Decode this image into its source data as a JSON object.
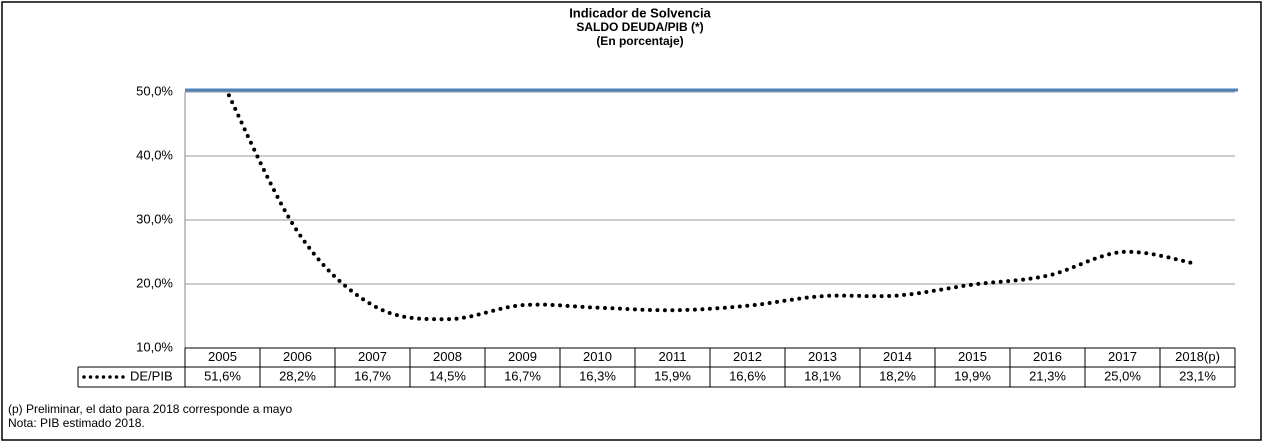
{
  "chart_data": {
    "type": "line",
    "title": "Indicador de Solvencia",
    "subtitle": [
      "SALDO DEUDA/PIB (*)",
      "(En porcentaje)"
    ],
    "categories": [
      "2005",
      "2006",
      "2007",
      "2008",
      "2009",
      "2010",
      "2011",
      "2012",
      "2013",
      "2014",
      "2015",
      "2016",
      "2017",
      "2018(p)"
    ],
    "series": [
      {
        "name": "DE/PIB",
        "color": "#000000",
        "values": [
          51.6,
          28.2,
          16.7,
          14.5,
          16.7,
          16.3,
          15.9,
          16.6,
          18.1,
          18.2,
          19.9,
          21.3,
          25.0,
          23.1
        ],
        "value_labels": [
          "51,6%",
          "28,2%",
          "16,7%",
          "14,5%",
          "16,7%",
          "16,3%",
          "15,9%",
          "16,6%",
          "18,1%",
          "18,2%",
          "19,9%",
          "21,3%",
          "25,0%",
          "23,1%"
        ]
      }
    ],
    "ylim": [
      10,
      50
    ],
    "yticks": [
      {
        "value": 10,
        "label": "10,0%"
      },
      {
        "value": 20,
        "label": "20,0%"
      },
      {
        "value": 30,
        "label": "30,0%"
      },
      {
        "value": 40,
        "label": "40,0%"
      },
      {
        "value": 50,
        "label": "50,0%"
      }
    ],
    "grid": true,
    "notes": [
      "(p)  Preliminar, el dato para 2018 corresponde a mayo",
      "Nota: PIB estimado 2018."
    ]
  }
}
